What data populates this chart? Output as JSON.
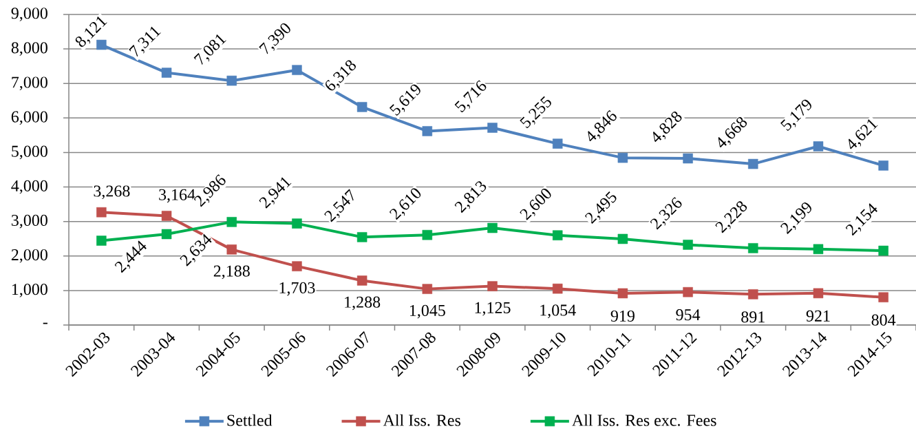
{
  "chart_data": {
    "type": "line",
    "categories": [
      "2002-03",
      "2003-04",
      "2004-05",
      "2005-06",
      "2006-07",
      "2007-08",
      "2008-09",
      "2009-10",
      "2010-11",
      "2011-12",
      "2012-13",
      "2013-14",
      "2014-15"
    ],
    "series": [
      {
        "name": "Settled",
        "color": "#4f81bd",
        "values": [
          8121,
          7311,
          7081,
          7390,
          6318,
          5619,
          5716,
          5255,
          4846,
          4828,
          4668,
          5179,
          4621
        ],
        "value_labels": [
          "8,121",
          "7,311",
          "7,081",
          "7,390",
          "6,318",
          "5,619",
          "5,716",
          "5,255",
          "4,846",
          "4,828",
          "4,668",
          "5,179",
          "4,621"
        ]
      },
      {
        "name": "All Iss. Res",
        "color": "#c0504d",
        "values": [
          3268,
          3164,
          2188,
          1703,
          1288,
          1045,
          1125,
          1054,
          919,
          954,
          891,
          921,
          804
        ],
        "value_labels": [
          "3,268",
          "3,164",
          "2,188",
          "1,703",
          "1,288",
          "1,045",
          "1,125",
          "1,054",
          "919",
          "954",
          "891",
          "921",
          "804"
        ]
      },
      {
        "name": "All Iss. Res exc. Fees",
        "color": "#00b050",
        "values": [
          2444,
          2634,
          2986,
          2941,
          2547,
          2610,
          2813,
          2600,
          2495,
          2326,
          2228,
          2199,
          2154
        ],
        "value_labels": [
          "2,444",
          "2,634",
          "2,986",
          "2,941",
          "2,547",
          "2,610",
          "2,813",
          "2,600",
          "2,495",
          "2,326",
          "2,228",
          "2,199",
          "2,154"
        ]
      }
    ],
    "ylim": [
      0,
      9000
    ],
    "yticks": [
      {
        "value": 0,
        "label": "-"
      },
      {
        "value": 1000,
        "label": "1,000"
      },
      {
        "value": 2000,
        "label": "2,000"
      },
      {
        "value": 3000,
        "label": "3,000"
      },
      {
        "value": 4000,
        "label": "4,000"
      },
      {
        "value": 5000,
        "label": "5,000"
      },
      {
        "value": 6000,
        "label": "6,000"
      },
      {
        "value": 7000,
        "label": "7,000"
      },
      {
        "value": 8000,
        "label": "8,000"
      },
      {
        "value": 9000,
        "label": "9,000"
      }
    ],
    "grid": "y",
    "legend": "bottom",
    "marker": "square",
    "line_style": "solid"
  }
}
